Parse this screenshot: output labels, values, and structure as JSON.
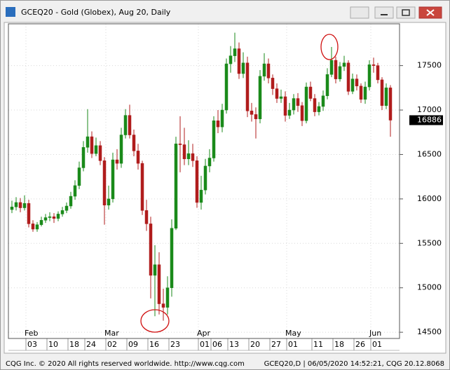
{
  "chart_data": {
    "type": "candlestick",
    "title": "GCEQ20 - Gold (Globex), Aug 20, Daily",
    "categories": [
      null,
      null,
      null,
      null,
      "03",
      null,
      null,
      null,
      null,
      "10",
      null,
      null,
      null,
      null,
      "18",
      null,
      null,
      null,
      "24",
      null,
      null,
      null,
      null,
      "02",
      null,
      null,
      null,
      null,
      "09",
      null,
      null,
      null,
      null,
      "16",
      null,
      null,
      null,
      null,
      "23",
      null,
      null,
      null,
      null,
      null,
      null,
      "01",
      null,
      null,
      "06",
      null,
      null,
      null,
      "13",
      null,
      null,
      null,
      null,
      "20",
      null,
      null,
      null,
      null,
      "27",
      null,
      null,
      null,
      "01",
      null,
      null,
      null,
      null,
      null,
      "11",
      null,
      null,
      null,
      null,
      "18",
      null,
      null,
      null,
      null,
      "26",
      null,
      null,
      null,
      "01",
      null,
      null,
      null,
      null
    ],
    "months": [
      null,
      null,
      null,
      null,
      "Feb",
      null,
      null,
      null,
      null,
      null,
      null,
      null,
      null,
      null,
      null,
      null,
      null,
      null,
      null,
      null,
      null,
      null,
      null,
      "Mar",
      null,
      null,
      null,
      null,
      null,
      null,
      null,
      null,
      null,
      null,
      null,
      null,
      null,
      null,
      null,
      null,
      null,
      null,
      null,
      null,
      null,
      "Apr",
      null,
      null,
      null,
      null,
      null,
      null,
      null,
      null,
      null,
      null,
      null,
      null,
      null,
      null,
      null,
      null,
      null,
      null,
      null,
      null,
      "May",
      null,
      null,
      null,
      null,
      null,
      null,
      null,
      null,
      null,
      null,
      null,
      null,
      null,
      null,
      null,
      null,
      null,
      null,
      null,
      "Jun",
      null,
      null,
      null,
      null
    ],
    "open": [
      15880,
      15910,
      15960,
      15900,
      15950,
      15720,
      15660,
      15710,
      15760,
      15790,
      15800,
      15780,
      15830,
      15870,
      15920,
      16030,
      16150,
      16350,
      16580,
      16700,
      16510,
      16600,
      16430,
      15930,
      16000,
      16440,
      16400,
      16720,
      16940,
      16720,
      16540,
      16400,
      15870,
      15720,
      15140,
      15260,
      14820,
      14780,
      15000,
      15670,
      16620,
      16610,
      16450,
      16510,
      16430,
      15960,
      16100,
      16370,
      16460,
      16880,
      16810,
      17000,
      17520,
      17610,
      17690,
      17410,
      17530,
      16990,
      16950,
      16900,
      17380,
      17520,
      17360,
      17240,
      17130,
      17150,
      16940,
      17000,
      17130,
      17050,
      16880,
      17260,
      17130,
      16980,
      17040,
      17160,
      17400,
      17560,
      17350,
      17490,
      17530,
      17210,
      17350,
      17270,
      17120,
      17260,
      17510,
      17500,
      17340,
      17050,
      17250
    ],
    "high": [
      15980,
      16020,
      16010,
      16040,
      15990,
      15760,
      15740,
      15800,
      15830,
      15850,
      15840,
      15860,
      15910,
      15960,
      16080,
      16210,
      16420,
      16650,
      17010,
      16760,
      16690,
      16650,
      16470,
      16150,
      16520,
      16560,
      16800,
      17010,
      17060,
      16780,
      16620,
      16430,
      15990,
      15800,
      15480,
      15400,
      14990,
      15130,
      15770,
      16700,
      16930,
      16800,
      16660,
      16620,
      16480,
      16260,
      16450,
      16560,
      16930,
      17000,
      17070,
      17580,
      17720,
      17870,
      17760,
      17650,
      17600,
      17080,
      17030,
      17450,
      17640,
      17580,
      17400,
      17300,
      17230,
      17210,
      17080,
      17180,
      17190,
      17090,
      17310,
      17320,
      17180,
      17090,
      17220,
      17470,
      17710,
      17600,
      17540,
      17610,
      17560,
      17410,
      17400,
      17300,
      17320,
      17560,
      17590,
      17530,
      17370,
      17300,
      17280
    ],
    "low": [
      15840,
      15870,
      15850,
      15870,
      15680,
      15630,
      15630,
      15690,
      15730,
      15750,
      15730,
      15750,
      15800,
      15840,
      15890,
      15990,
      16110,
      16310,
      16520,
      16460,
      16480,
      16380,
      15710,
      15880,
      15960,
      16330,
      16350,
      16680,
      16680,
      16480,
      16330,
      15820,
      15640,
      14880,
      14680,
      14700,
      14630,
      14700,
      14900,
      15650,
      16300,
      16380,
      16380,
      16360,
      15900,
      15880,
      16050,
      16300,
      16420,
      16740,
      16750,
      16960,
      17420,
      17540,
      17350,
      17360,
      16920,
      16870,
      16680,
      16850,
      17330,
      17300,
      17170,
      17080,
      17080,
      16870,
      16900,
      16950,
      16980,
      16820,
      16850,
      17100,
      16930,
      16940,
      16990,
      17120,
      17370,
      17300,
      17320,
      17440,
      17170,
      17180,
      17220,
      17080,
      17070,
      17220,
      17420,
      17300,
      17000,
      17010,
      16700
    ],
    "close": [
      15910,
      15960,
      15900,
      15950,
      15720,
      15660,
      15710,
      15760,
      15790,
      15800,
      15780,
      15830,
      15870,
      15920,
      16030,
      16150,
      16350,
      16580,
      16700,
      16510,
      16600,
      16430,
      15930,
      16000,
      16440,
      16400,
      16720,
      16940,
      16720,
      16540,
      16400,
      15870,
      15720,
      15140,
      15260,
      14820,
      14780,
      15000,
      15670,
      16620,
      16610,
      16450,
      16510,
      16430,
      15960,
      16100,
      16370,
      16460,
      16880,
      16810,
      17000,
      17520,
      17610,
      17690,
      17410,
      17530,
      16990,
      16950,
      16900,
      17380,
      17520,
      17360,
      17240,
      17130,
      17150,
      16940,
      17000,
      17130,
      17050,
      16880,
      17260,
      17130,
      16980,
      17040,
      17160,
      17400,
      17560,
      17350,
      17490,
      17530,
      17210,
      17350,
      17270,
      17120,
      17260,
      17510,
      17500,
      17340,
      17050,
      17250,
      16886
    ],
    "up_color": "#1a8a1a",
    "down_color": "#b01c1c",
    "ylim": [
      14430,
      17970
    ],
    "yticks": [
      14500,
      15000,
      15500,
      16000,
      16500,
      17000,
      17500
    ],
    "grid": true,
    "last_label": 16886
  },
  "status_bar": {
    "left": "CQG Inc. © 2020 All rights reserved worldwide. http://www.cqg.com",
    "right": "GCEQ20,D | 06/05/2020 14:52:21, CQG 20.12.8068"
  }
}
